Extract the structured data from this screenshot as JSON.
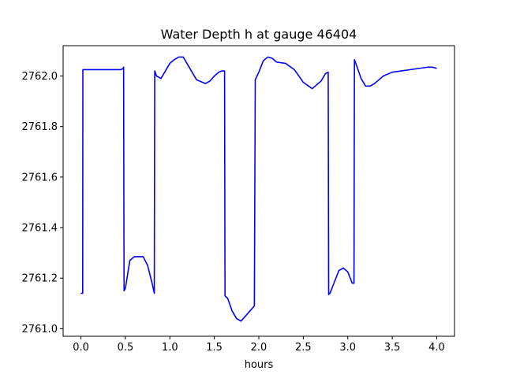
{
  "chart_data": {
    "type": "line",
    "title": "Water Depth h at gauge 46404",
    "xlabel": "hours",
    "ylabel": "",
    "xlim": [
      -0.2,
      4.2
    ],
    "ylim": [
      2760.97,
      2762.12
    ],
    "x_ticks": [
      0.0,
      0.5,
      1.0,
      1.5,
      2.0,
      2.5,
      3.0,
      3.5,
      4.0
    ],
    "x_tick_labels": [
      "0.0",
      "0.5",
      "1.0",
      "1.5",
      "2.0",
      "2.5",
      "3.0",
      "3.5",
      "4.0"
    ],
    "y_ticks": [
      2761.0,
      2761.2,
      2761.4,
      2761.6,
      2761.8,
      2762.0
    ],
    "y_tick_labels": [
      "2761.0",
      "2761.2",
      "2761.4",
      "2761.6",
      "2761.8",
      "2762.0"
    ],
    "grid": false,
    "series": [
      {
        "name": "",
        "color": "#0000ff",
        "x": [
          0.0,
          0.02,
          0.022,
          0.1,
          0.3,
          0.45,
          0.475,
          0.48,
          0.485,
          0.5,
          0.55,
          0.6,
          0.65,
          0.7,
          0.75,
          0.8,
          0.825,
          0.83,
          0.85,
          0.9,
          0.95,
          1.0,
          1.05,
          1.1,
          1.15,
          1.2,
          1.3,
          1.4,
          1.45,
          1.5,
          1.55,
          1.58,
          1.6,
          1.615,
          1.62,
          1.65,
          1.7,
          1.75,
          1.8,
          1.85,
          1.9,
          1.95,
          1.96,
          2.0,
          2.05,
          2.1,
          2.15,
          2.2,
          2.3,
          2.4,
          2.5,
          2.6,
          2.7,
          2.75,
          2.78,
          2.785,
          2.8,
          2.85,
          2.9,
          2.95,
          3.0,
          3.05,
          3.07,
          3.075,
          3.1,
          3.15,
          3.2,
          3.25,
          3.3,
          3.35,
          3.4,
          3.5,
          3.6,
          3.7,
          3.8,
          3.9,
          3.95,
          4.0
        ],
        "y": [
          2761.14,
          2761.14,
          2762.025,
          2762.025,
          2762.025,
          2762.025,
          2762.03,
          2762.035,
          2761.15,
          2761.16,
          2761.27,
          2761.285,
          2761.285,
          2761.285,
          2761.25,
          2761.18,
          2761.14,
          2762.02,
          2762.0,
          2761.99,
          2762.02,
          2762.05,
          2762.065,
          2762.075,
          2762.075,
          2762.045,
          2761.985,
          2761.97,
          2761.98,
          2762.0,
          2762.015,
          2762.02,
          2762.02,
          2762.02,
          2761.13,
          2761.12,
          2761.07,
          2761.04,
          2761.03,
          2761.05,
          2761.07,
          2761.09,
          2761.985,
          2762.015,
          2762.06,
          2762.075,
          2762.07,
          2762.055,
          2762.05,
          2762.025,
          2761.975,
          2761.95,
          2761.98,
          2762.01,
          2762.015,
          2761.135,
          2761.14,
          2761.185,
          2761.23,
          2761.24,
          2761.225,
          2761.18,
          2761.18,
          2762.065,
          2762.04,
          2761.99,
          2761.96,
          2761.96,
          2761.97,
          2761.985,
          2762.0,
          2762.015,
          2762.02,
          2762.025,
          2762.03,
          2762.035,
          2762.035,
          2762.03
        ]
      }
    ]
  }
}
